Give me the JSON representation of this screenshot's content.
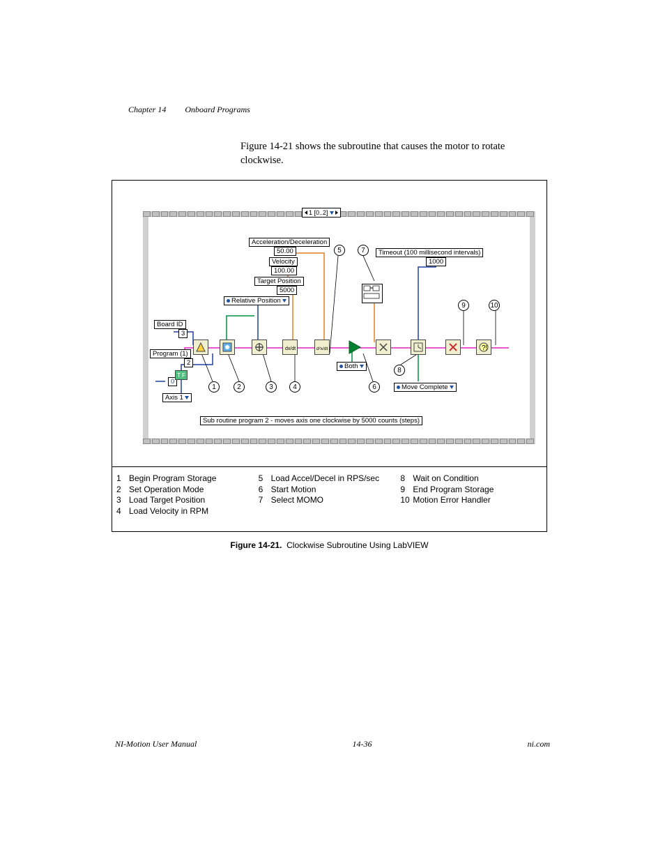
{
  "header": {
    "chapter_num": "Chapter 14",
    "chapter_title": "Onboard Programs"
  },
  "intro_text": "Figure 14-21 shows the subroutine that causes the motor to rotate clockwise.",
  "diagram": {
    "loop_index": "1 [0..2]",
    "labels": {
      "accel": "Acceleration/Deceleration",
      "accel_val": "50.00",
      "velocity": "Velocity",
      "velocity_val": "100.00",
      "target_pos": "Target Position",
      "target_pos_val": "5000",
      "rel_pos": "Relative Position",
      "board_id": "Board ID",
      "board_id_val": "3",
      "program": "Program (1)",
      "program_val": "2",
      "axis": "Axis 1",
      "both": "Both",
      "move_complete": "Move Complete",
      "timeout_label": "Timeout (100 millisecond intervals)",
      "timeout_val": "1000",
      "subroutine_note": "Sub routine program 2 - moves axis one clockwise by 5000 counts (steps)",
      "zero": "0"
    },
    "colors": {
      "wire_orange": "#e08020",
      "wire_magenta": "#e020c0",
      "wire_blue": "#2040a0",
      "wire_green": "#009040",
      "band_grey": "#c0c0c0",
      "node_fill": "#f0f0d0"
    }
  },
  "legend": [
    {
      "n": "1",
      "label": "Begin Program Storage"
    },
    {
      "n": "2",
      "label": "Set Operation Mode"
    },
    {
      "n": "3",
      "label": "Load Target Position"
    },
    {
      "n": "4",
      "label": "Load Velocity in RPM"
    },
    {
      "n": "5",
      "label": "Load Accel/Decel in RPS/sec"
    },
    {
      "n": "6",
      "label": "Start Motion"
    },
    {
      "n": "7",
      "label": "Select MOMO"
    },
    {
      "n": "8",
      "label": "Wait on Condition"
    },
    {
      "n": "9",
      "label": "End Program Storage"
    },
    {
      "n": "10",
      "label": "Motion Error Handler"
    }
  ],
  "caption": {
    "fig": "Figure 14-21.",
    "text": "Clockwise Subroutine Using LabVIEW"
  },
  "footer": {
    "left": "NI-Motion User Manual",
    "center": "14-36",
    "right": "ni.com"
  }
}
